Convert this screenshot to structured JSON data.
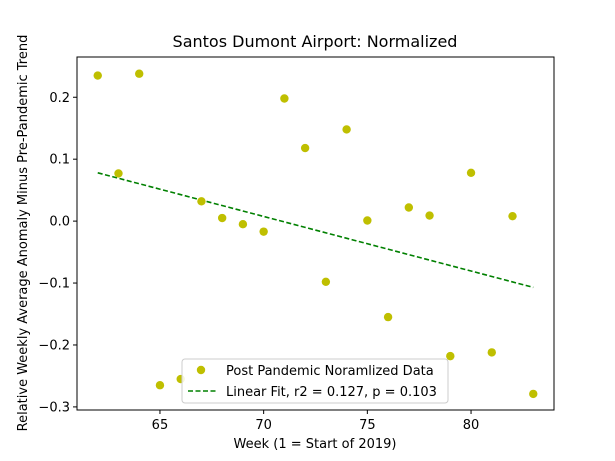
{
  "chart_data": {
    "type": "scatter",
    "title": "Santos Dumont Airport: Normalized",
    "xlabel": "Week (1 = Start of 2019)",
    "ylabel": "Relative Weekly Average Anomaly Minus Pre-Pandemic Trend",
    "xlim": [
      61,
      84
    ],
    "ylim": [
      -0.305,
      0.265
    ],
    "x_ticks": [
      65,
      70,
      75,
      80
    ],
    "y_ticks": [
      -0.3,
      -0.2,
      -0.1,
      0.0,
      0.1,
      0.2
    ],
    "y_tick_labels": [
      "−0.3",
      "−0.2",
      "−0.1",
      "0.0",
      "0.1",
      "0.2"
    ],
    "grid": false,
    "legend_position": "lower-center",
    "series": [
      {
        "name": "Post Pandemic Noramlized Data",
        "kind": "scatter",
        "color": "#bfbf00",
        "points": [
          {
            "x": 62,
            "y": 0.235
          },
          {
            "x": 63,
            "y": 0.077
          },
          {
            "x": 64,
            "y": 0.238
          },
          {
            "x": 65,
            "y": -0.265
          },
          {
            "x": 66,
            "y": -0.255
          },
          {
            "x": 67,
            "y": 0.032
          },
          {
            "x": 68,
            "y": 0.005
          },
          {
            "x": 69,
            "y": -0.005
          },
          {
            "x": 70,
            "y": -0.017
          },
          {
            "x": 71,
            "y": 0.198
          },
          {
            "x": 72,
            "y": 0.118
          },
          {
            "x": 73,
            "y": -0.098
          },
          {
            "x": 74,
            "y": 0.148
          },
          {
            "x": 75,
            "y": 0.001
          },
          {
            "x": 76,
            "y": -0.155
          },
          {
            "x": 77,
            "y": 0.022
          },
          {
            "x": 78,
            "y": 0.009
          },
          {
            "x": 79,
            "y": -0.218
          },
          {
            "x": 80,
            "y": 0.078
          },
          {
            "x": 81,
            "y": -0.212
          },
          {
            "x": 82,
            "y": 0.008
          },
          {
            "x": 83,
            "y": -0.279
          }
        ]
      },
      {
        "name": "Linear Fit, r2 = 0.127, p = 0.103",
        "kind": "line",
        "style": "dashed",
        "color": "#008000",
        "points": [
          {
            "x": 62,
            "y": 0.078
          },
          {
            "x": 83,
            "y": -0.107
          }
        ]
      }
    ]
  }
}
